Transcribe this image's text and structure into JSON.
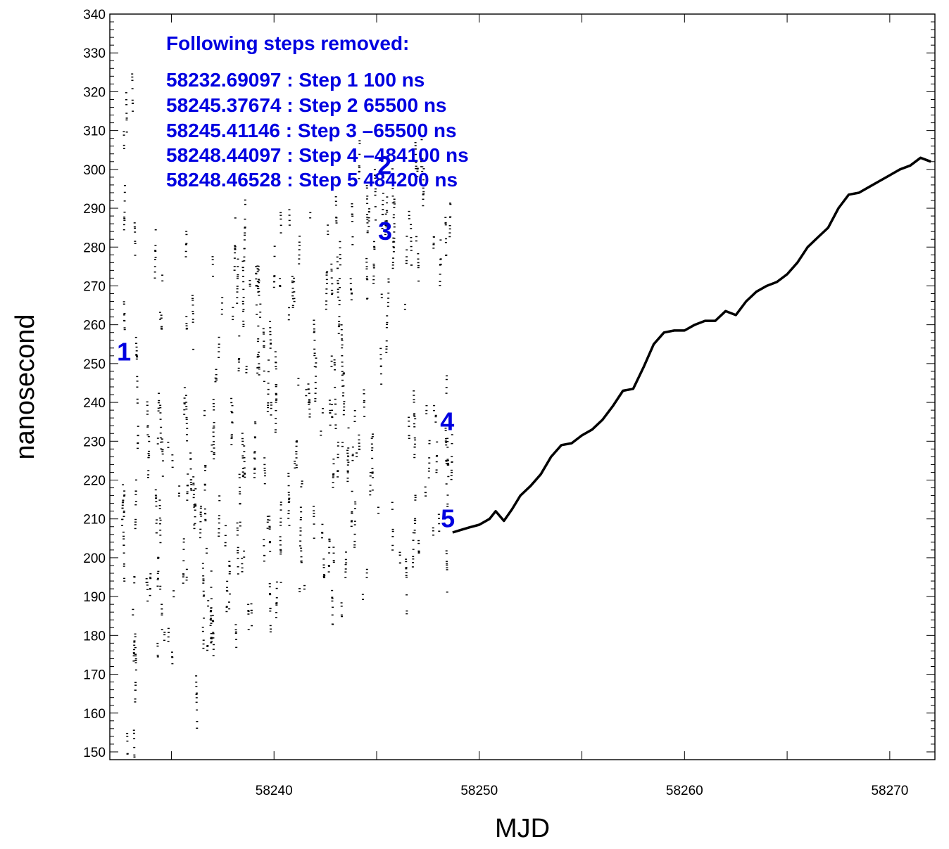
{
  "chart_data": {
    "type": "scatter",
    "title": "",
    "xlabel": "MJD",
    "ylabel": "nanosecond",
    "xlim": [
      58232.0,
      58272.2
    ],
    "ylim": [
      148,
      340
    ],
    "xticks": [
      58240,
      58250,
      58260,
      58270
    ],
    "xtick_labels": [
      "58240",
      "58250",
      "58260",
      "58270"
    ],
    "xminor_step": 5,
    "yticks": [
      150,
      160,
      170,
      180,
      190,
      200,
      210,
      220,
      230,
      240,
      250,
      260,
      270,
      280,
      290,
      300,
      310,
      320,
      330,
      340
    ],
    "ytick_labels": [
      "150",
      "160",
      "170",
      "180",
      "190",
      "200",
      "210",
      "220",
      "230",
      "240",
      "250",
      "260",
      "270",
      "280",
      "290",
      "300",
      "310",
      "320",
      "330",
      "340"
    ],
    "yminor_step": 2,
    "grid": false,
    "annotation": {
      "heading": "Following steps removed:",
      "lines": [
        "58232.69097 : Step 1 100 ns",
        "58245.37674 : Step 2 65500 ns",
        "58245.41146 : Step 3 –65500 ns",
        "58248.44097 : Step 4 –484100 ns",
        "58248.46528 : Step 5 484200 ns"
      ]
    },
    "step_markers": [
      {
        "label": "1",
        "x": 58232.69,
        "y": 253
      },
      {
        "label": "2",
        "x": 58245.38,
        "y": 301
      },
      {
        "label": "3",
        "x": 58245.41,
        "y": 284
      },
      {
        "label": "4",
        "x": 58248.44,
        "y": 235
      },
      {
        "label": "5",
        "x": 58248.47,
        "y": 210
      }
    ],
    "scatter_region": {
      "x_start": 58232.5,
      "x_end": 58248.6,
      "y_min": 148,
      "y_max": 340
    },
    "continuous_series": {
      "x": [
        58248.7,
        58249.0,
        58249.5,
        58250.0,
        58250.5,
        58250.8,
        58251.2,
        58251.6,
        58252.0,
        58252.5,
        58253.0,
        58253.5,
        58254.0,
        58254.5,
        58255.0,
        58255.5,
        58256.0,
        58256.5,
        58257.0,
        58257.5,
        58258.0,
        58258.5,
        58259.0,
        58259.5,
        58260.0,
        58260.5,
        58261.0,
        58261.5,
        58262.0,
        58262.5,
        58263.0,
        58263.5,
        58264.0,
        58264.5,
        58265.0,
        58265.5,
        58266.0,
        58266.5,
        58267.0,
        58267.5,
        58268.0,
        58268.5,
        58269.0,
        58269.5,
        58270.0,
        58270.5,
        58271.0,
        58271.5,
        58272.0
      ],
      "y": [
        206.5,
        207.0,
        207.8,
        208.5,
        210.0,
        212.0,
        209.5,
        212.5,
        216.0,
        218.5,
        221.5,
        226.0,
        229.0,
        229.5,
        231.5,
        233.0,
        235.5,
        239.0,
        243.0,
        243.5,
        249.0,
        255.0,
        258.0,
        258.5,
        258.5,
        260.0,
        261.0,
        261.0,
        263.5,
        262.5,
        266.0,
        268.5,
        270.0,
        271.0,
        273.0,
        276.0,
        280.0,
        282.5,
        285.0,
        290.0,
        293.5,
        294.0,
        295.5,
        297.0,
        298.5,
        300.0,
        301.0,
        303.0,
        302.0
      ]
    }
  }
}
